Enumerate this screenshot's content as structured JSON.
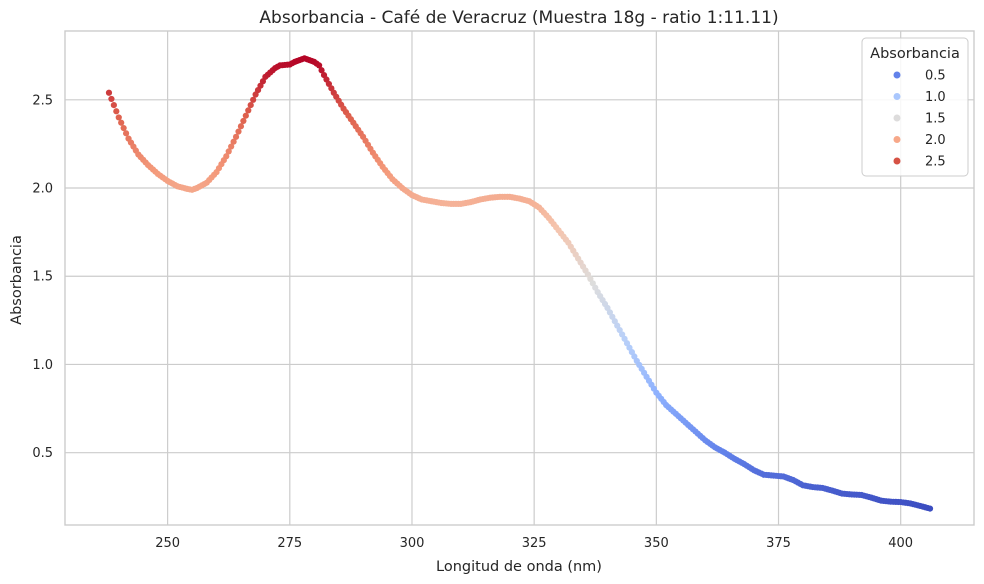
{
  "chart_data": {
    "type": "scatter",
    "title": "Absorbancia - Café de Veracruz (Muestra 18g - ratio 1:11.11)",
    "xlabel": "Longitud de onda (nm)",
    "ylabel": "Absorbancia",
    "xlim": [
      229,
      415
    ],
    "ylim": [
      0.09,
      2.89
    ],
    "xticks": [
      250,
      275,
      300,
      325,
      350,
      375,
      400
    ],
    "yticks": [
      0.5,
      1.0,
      1.5,
      2.0,
      2.5
    ],
    "xtick_labels": [
      "250",
      "275",
      "300",
      "325",
      "350",
      "375",
      "400"
    ],
    "ytick_labels": [
      "0.5",
      "1.0",
      "1.5",
      "2.0",
      "2.5"
    ],
    "grid": true,
    "legend_position": "top-right",
    "colormap": "coolwarm",
    "color_range": [
      0.18,
      2.73
    ],
    "legend": {
      "title": "Absorbancia",
      "entries": [
        {
          "label": "0.5",
          "color": "#6282ea"
        },
        {
          "label": "1.0",
          "color": "#aac7fd"
        },
        {
          "label": "1.5",
          "color": "#dddcdc"
        },
        {
          "label": "2.0",
          "color": "#f7a889"
        },
        {
          "label": "2.5",
          "color": "#d65244"
        }
      ]
    },
    "x_range": [
      238,
      406
    ],
    "x_step": 0.5,
    "curve_anchors": {
      "x": [
        238,
        239,
        240,
        242,
        244,
        246,
        248,
        250,
        252,
        254,
        255,
        256,
        258,
        260,
        262,
        264,
        266,
        268,
        270,
        272,
        273,
        275,
        276,
        277,
        278,
        279,
        280,
        281,
        282,
        284,
        286,
        288,
        290,
        292,
        294,
        296,
        298,
        300,
        302,
        304,
        306,
        308,
        310,
        312,
        314,
        316,
        318,
        320,
        322,
        324,
        326,
        328,
        330,
        332,
        334,
        336,
        338,
        340,
        342,
        344,
        346,
        348,
        350,
        352,
        354,
        356,
        358,
        360,
        362,
        364,
        366,
        368,
        370,
        372,
        374,
        376,
        378,
        380,
        382,
        384,
        386,
        388,
        390,
        392,
        394,
        396,
        398,
        400,
        402,
        404,
        406
      ],
      "y": [
        2.54,
        2.47,
        2.4,
        2.28,
        2.19,
        2.13,
        2.08,
        2.04,
        2.01,
        1.995,
        1.99,
        2.0,
        2.03,
        2.09,
        2.18,
        2.29,
        2.41,
        2.53,
        2.63,
        2.68,
        2.695,
        2.7,
        2.715,
        2.725,
        2.735,
        2.725,
        2.715,
        2.695,
        2.64,
        2.54,
        2.45,
        2.37,
        2.29,
        2.2,
        2.12,
        2.05,
        2.0,
        1.96,
        1.935,
        1.925,
        1.915,
        1.91,
        1.91,
        1.92,
        1.935,
        1.945,
        1.95,
        1.95,
        1.94,
        1.925,
        1.89,
        1.83,
        1.76,
        1.69,
        1.6,
        1.51,
        1.41,
        1.32,
        1.22,
        1.12,
        1.02,
        0.93,
        0.84,
        0.77,
        0.72,
        0.67,
        0.62,
        0.57,
        0.53,
        0.5,
        0.465,
        0.435,
        0.4,
        0.375,
        0.37,
        0.365,
        0.345,
        0.315,
        0.305,
        0.3,
        0.285,
        0.268,
        0.263,
        0.26,
        0.245,
        0.228,
        0.222,
        0.22,
        0.212,
        0.198,
        0.183
      ]
    }
  }
}
